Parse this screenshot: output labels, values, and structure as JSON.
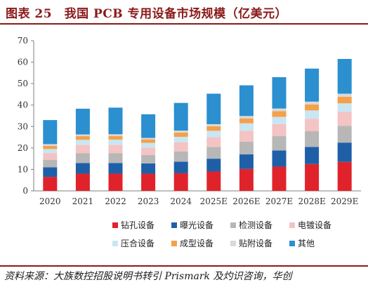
{
  "header": {
    "title": "图表 25　我国 PCB 专用设备市场规模（亿美元）"
  },
  "footer": {
    "source": "资料来源：大族数控招股说明书转引 Prismark 及灼识咨询，华创"
  },
  "chart_data": {
    "type": "bar",
    "stacked": true,
    "categories": [
      "2020",
      "2021",
      "2022",
      "2023",
      "2024",
      "2025E",
      "2026E",
      "2027E",
      "2028E",
      "2029E"
    ],
    "ylim": [
      0,
      70
    ],
    "yticks": [
      0,
      10,
      20,
      30,
      40,
      50,
      60,
      70
    ],
    "xlabel": "",
    "ylabel": "",
    "grid": false,
    "legend_position": "bottom",
    "series": [
      {
        "name": "钻孔设备",
        "color": "#e0232b",
        "values": [
          6.5,
          8.0,
          8.0,
          8.0,
          8.2,
          9.0,
          10.2,
          11.3,
          12.5,
          13.5
        ]
      },
      {
        "name": "曝光设备",
        "color": "#1f5fa8",
        "values": [
          4.5,
          5.0,
          5.0,
          4.8,
          5.4,
          6.0,
          6.8,
          7.5,
          8.0,
          9.0
        ]
      },
      {
        "name": "检测设备",
        "color": "#b7b7b7",
        "values": [
          3.5,
          4.5,
          4.5,
          3.9,
          4.8,
          5.5,
          6.0,
          6.7,
          7.3,
          7.8
        ]
      },
      {
        "name": "电镀设备",
        "color": "#f4c3c3",
        "values": [
          3.0,
          4.0,
          4.0,
          3.5,
          4.2,
          4.5,
          5.0,
          5.6,
          5.8,
          6.5
        ]
      },
      {
        "name": "压合设备",
        "color": "#c9e6f2",
        "values": [
          2.0,
          2.3,
          2.4,
          2.2,
          2.6,
          3.0,
          3.5,
          3.4,
          3.9,
          4.0
        ]
      },
      {
        "name": "成型设备",
        "color": "#f5a04a",
        "values": [
          1.5,
          1.7,
          1.7,
          1.6,
          2.0,
          2.1,
          2.3,
          2.7,
          2.8,
          3.1
        ]
      },
      {
        "name": "贴附设备",
        "color": "#d9d9d9",
        "values": [
          0.8,
          0.8,
          0.8,
          0.7,
          0.9,
          1.0,
          1.1,
          1.2,
          1.3,
          1.4
        ]
      },
      {
        "name": "其他",
        "color": "#2b8fd0",
        "values": [
          11.2,
          12.0,
          12.4,
          11.0,
          12.9,
          14.2,
          14.3,
          14.6,
          15.4,
          16.2
        ]
      }
    ]
  }
}
